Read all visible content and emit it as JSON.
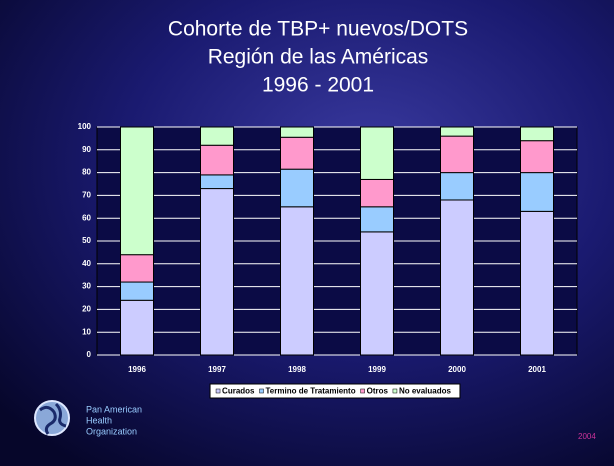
{
  "chart_data": {
    "type": "stacked-bar",
    "title": [
      "Cohorte de TBP+ nuevos/DOTS",
      "Región de las Américas",
      "1996 - 2001"
    ],
    "categories": [
      "1996",
      "1997",
      "1998",
      "1999",
      "2000",
      "2001"
    ],
    "series": [
      {
        "name": "Curados",
        "color": "#ccccff",
        "values": [
          24,
          73,
          65,
          54,
          68,
          63
        ]
      },
      {
        "name": "Termino de Tratamiento",
        "color": "#99ccff",
        "values": [
          8,
          6,
          16.5,
          11,
          12,
          17
        ]
      },
      {
        "name": "Otros",
        "color": "#ff99cc",
        "values": [
          12,
          13,
          14,
          12,
          16,
          14
        ]
      },
      {
        "name": "No evaluados",
        "color": "#ccffcc",
        "values": [
          56,
          8,
          4.5,
          23,
          4,
          6
        ]
      }
    ],
    "ylim": [
      0,
      100
    ],
    "yticks": [
      0,
      10,
      20,
      30,
      40,
      50,
      60,
      70,
      80,
      90,
      100
    ],
    "grid": true,
    "legend": "bottom"
  },
  "footer": {
    "organization": [
      "Pan American",
      "Health",
      "Organization"
    ],
    "year": "2004"
  }
}
